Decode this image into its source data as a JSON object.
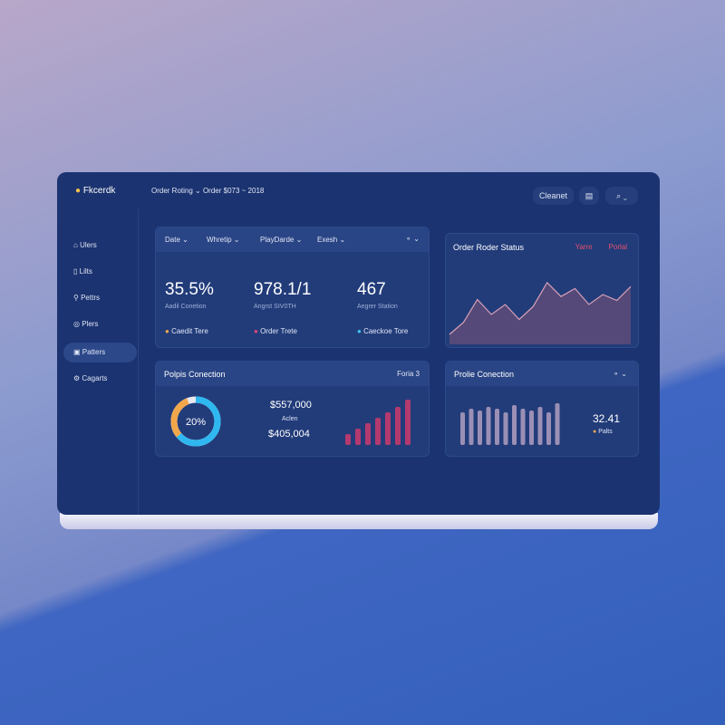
{
  "brand": "Fkcerdk",
  "breadcrumb": [
    "Order Roting",
    "Order $073 ~ 2018"
  ],
  "toolbar": {
    "button": "Cleanet"
  },
  "sidebar": {
    "items": [
      "Ulers",
      "Lilts",
      "Pettrs",
      "Plers",
      "Patters",
      "Cagarts"
    ],
    "active": 4
  },
  "filters": [
    "Date",
    "Whretip",
    "PlayDarde",
    "Exesh"
  ],
  "stats": [
    {
      "value": "35.5%",
      "label": "Aadil Conetion"
    },
    {
      "value": "978.1/1",
      "label": "Angrst SIV0TH"
    },
    {
      "value": "467",
      "label": "Aegrer Station"
    }
  ],
  "legend": [
    {
      "name": "Caedit Tere",
      "color": "#f2a74b"
    },
    {
      "name": "Order Trete",
      "color": "#e0457a"
    },
    {
      "name": "Caeckoe Tore",
      "color": "#3ec6f0"
    }
  ],
  "status_card": {
    "title": "Order Roder Status",
    "legend": [
      "Yarre",
      "Porlal"
    ],
    "legend_color": "#e8506a",
    "color": "#5a4a78",
    "values": [
      10,
      22,
      45,
      30,
      40,
      25,
      38,
      62,
      48,
      56,
      40,
      50,
      44,
      58
    ]
  },
  "connection_card": {
    "title": "Polpis Conection",
    "link": "Foria 3",
    "donut": {
      "label": "20%",
      "segments": [
        {
          "value": 64,
          "color": "#2fb8f0"
        },
        {
          "value": 30,
          "color": "#f2a74b"
        }
      ]
    },
    "amounts": [
      "$557,000",
      "Aclen",
      "$405,004"
    ],
    "bar_color": "#b33a6e",
    "bars": [
      12,
      18,
      24,
      30,
      36,
      42,
      50
    ]
  },
  "profile_card": {
    "title": "Prolie Conection",
    "bar_color": "#9b8fb5",
    "bars": [
      36,
      40,
      38,
      42,
      40,
      36,
      44,
      40,
      38,
      42,
      36,
      46
    ],
    "value": "32.41",
    "legend": "Palts",
    "legend_color": "#f2a74b"
  }
}
